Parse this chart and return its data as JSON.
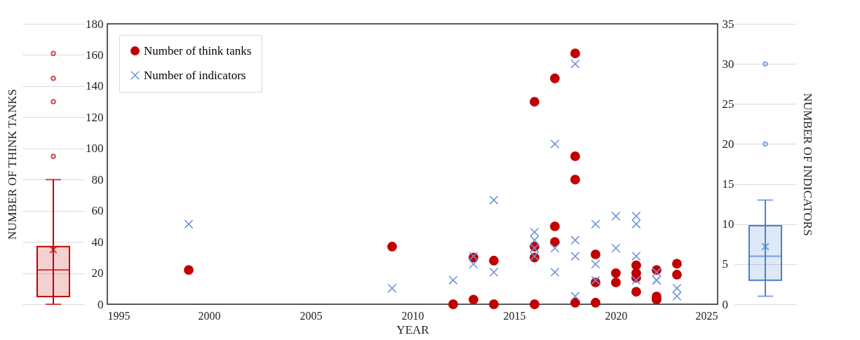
{
  "chart_data": [
    {
      "type": "box",
      "ylabel": "NUMBER OF THINK TANKS",
      "categories": [
        null
      ],
      "color": "#c00000",
      "grid": "y",
      "tick_labels": false,
      "ylim": [
        0,
        180
      ],
      "yticks": [
        0,
        20,
        40,
        60,
        80,
        100,
        120,
        140,
        160,
        180
      ],
      "boxes": [
        {
          "low": 0,
          "q1": 5,
          "median": 22,
          "q3": 37,
          "high": 80,
          "mean": 35,
          "outliers": [
            95,
            130,
            145,
            161
          ]
        }
      ]
    },
    {
      "type": "scatter",
      "xlabel": "YEAR",
      "xlim": [
        1995,
        2025
      ],
      "xticks": [
        1995,
        2000,
        2005,
        2010,
        2015,
        2020,
        2025
      ],
      "ylim": [
        0,
        180
      ],
      "y2lim": [
        0,
        35
      ],
      "yticks": [
        0,
        20,
        40,
        60,
        80,
        100,
        120,
        140,
        160,
        180
      ],
      "y2ticks": [
        0,
        5,
        10,
        15,
        20,
        25,
        30,
        35
      ],
      "legend": "top left",
      "series": [
        {
          "name": "Number of think tanks",
          "color": "#c00000",
          "marker": "circle",
          "x": [
            1999,
            2009,
            2012,
            2013,
            2013,
            2014,
            2014,
            2016,
            2016,
            2016,
            2016,
            2017,
            2017,
            2017,
            2018,
            2018,
            2018,
            2018,
            2019,
            2019,
            2019,
            2020,
            2020,
            2021,
            2021,
            2021,
            2021,
            2022,
            2022,
            2022,
            2023,
            2023
          ],
          "values": [
            22,
            37,
            0,
            3,
            30,
            0,
            28,
            0,
            30,
            37,
            130,
            145,
            50,
            40,
            161,
            95,
            80,
            1,
            32,
            14,
            1,
            20,
            14,
            25,
            20,
            17,
            8,
            22,
            5,
            3,
            26,
            19
          ]
        },
        {
          "name": "Number of indicators",
          "color": "#6f93db",
          "marker": "cross",
          "axis": "y2",
          "x": [
            1999,
            2009,
            2012,
            2013,
            2013,
            2014,
            2014,
            2016,
            2016,
            2016,
            2016,
            2017,
            2017,
            2017,
            2018,
            2018,
            2018,
            2018,
            2019,
            2019,
            2019,
            2020,
            2020,
            2021,
            2021,
            2021,
            2021,
            2022,
            2022,
            2022,
            2023,
            2023
          ],
          "values": [
            10,
            2,
            3,
            6,
            5,
            13,
            4,
            9,
            8,
            7,
            6,
            20,
            7,
            4,
            30,
            8,
            6,
            1,
            10,
            5,
            3,
            11,
            7,
            11,
            10,
            6,
            3,
            4,
            3,
            3,
            2,
            1
          ]
        }
      ]
    },
    {
      "type": "box",
      "ylabel": "NUMBER OF INDICATORS",
      "categories": [
        null
      ],
      "color": "#4a7fd4",
      "grid": "y",
      "tick_labels": false,
      "ylim": [
        0,
        35
      ],
      "yticks": [
        0,
        5,
        10,
        15,
        20,
        25,
        30,
        35
      ],
      "boxes": [
        {
          "low": 1,
          "q1": 3,
          "median": 6,
          "q3": 9.8,
          "high": 13,
          "mean": 7.2,
          "outliers": [
            20,
            30
          ]
        }
      ]
    }
  ]
}
